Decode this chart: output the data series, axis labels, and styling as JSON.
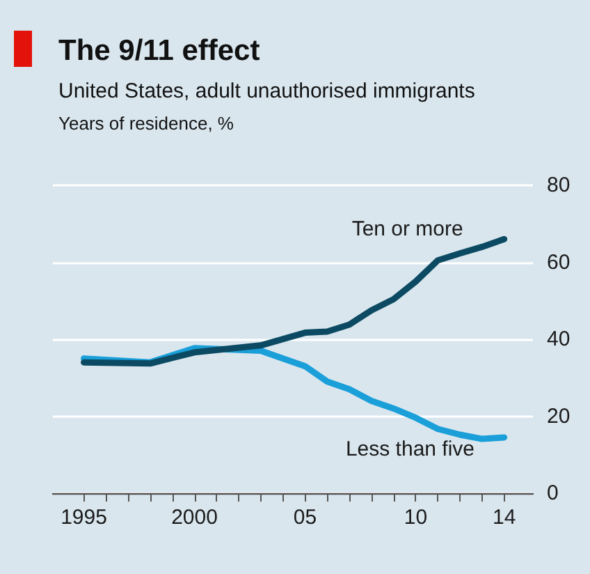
{
  "chart_data": {
    "type": "line",
    "title": "The 9/11 effect",
    "subtitle": "United States, adult unauthorised immigrants",
    "ylabel": "Years of residence, %",
    "x": [
      1995,
      1998,
      2000,
      2003,
      2005,
      2006,
      2007,
      2008,
      2009,
      2010,
      2011,
      2012,
      2013,
      2014
    ],
    "series": [
      {
        "name": "Less than five",
        "color": "#1a9fd9",
        "values": [
          35,
          34,
          37.7,
          37,
          33,
          29,
          27,
          24,
          22,
          19.6,
          16.7,
          15.2,
          14.1,
          14.5
        ]
      },
      {
        "name": "Ten or more",
        "color": "#0b4a62",
        "values": [
          34,
          33.7,
          36.6,
          38.4,
          41.7,
          42,
          43.8,
          47.5,
          50.4,
          55,
          60.5,
          62.3,
          64,
          66
        ]
      }
    ],
    "xlim": [
      1993.6,
      2015.3
    ],
    "xticks": [
      {
        "value": 1995,
        "label": "1995"
      },
      {
        "value": 1996,
        "label": null
      },
      {
        "value": 1997,
        "label": null
      },
      {
        "value": 1998,
        "label": null
      },
      {
        "value": 1999,
        "label": null
      },
      {
        "value": 2000,
        "label": "2000"
      },
      {
        "value": 2001,
        "label": null
      },
      {
        "value": 2002,
        "label": null
      },
      {
        "value": 2003,
        "label": null
      },
      {
        "value": 2004,
        "label": null
      },
      {
        "value": 2005,
        "label": "05"
      },
      {
        "value": 2006,
        "label": null
      },
      {
        "value": 2007,
        "label": null
      },
      {
        "value": 2008,
        "label": null
      },
      {
        "value": 2009,
        "label": null
      },
      {
        "value": 2010,
        "label": "10"
      },
      {
        "value": 2011,
        "label": null
      },
      {
        "value": 2012,
        "label": null
      },
      {
        "value": 2013,
        "label": null
      },
      {
        "value": 2014,
        "label": "14"
      }
    ],
    "ylim": [
      0,
      80
    ],
    "yticks": [
      0,
      20,
      40,
      60,
      80
    ],
    "grid": "y",
    "marker": "none",
    "line_style": "solid"
  }
}
